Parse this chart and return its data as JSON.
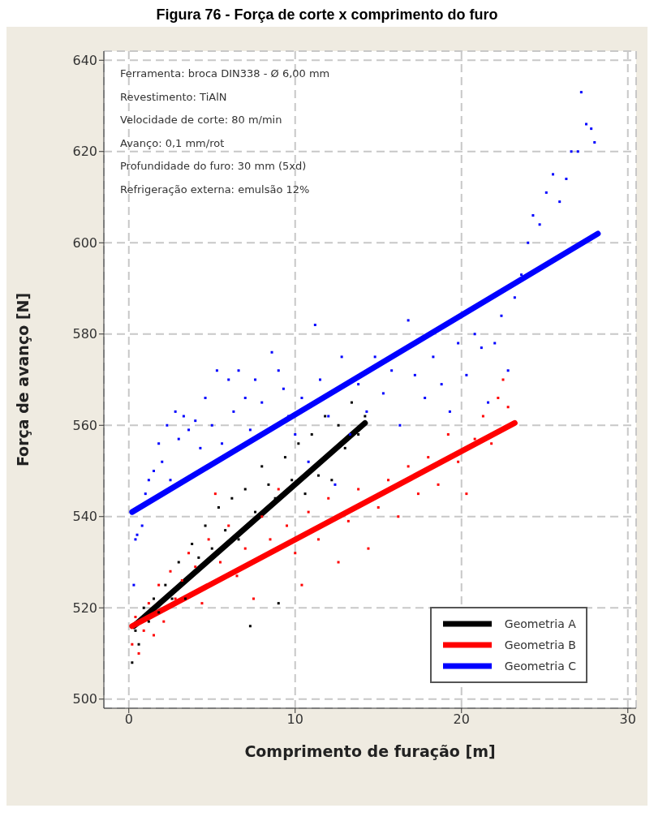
{
  "chart_data": {
    "type": "scatter",
    "title": "Figura 76 - Força de corte x comprimento do furo",
    "xlabel": "Comprimento de furação [m]",
    "ylabel": "Força de avanço [N]",
    "xlim": [
      -1.5,
      30.5
    ],
    "xticks": [
      0,
      10,
      20,
      30
    ],
    "ylim": [
      498,
      642
    ],
    "yticks": [
      500,
      520,
      540,
      560,
      580,
      600,
      620,
      640
    ],
    "grid": true,
    "legend": "bottom right",
    "marker": "square",
    "annotations": [
      "Ferramenta: broca DIN338 - Ø 6,00 mm",
      "Revestimento: TiAlN",
      "Velocidade de corte: 80 m/min",
      "Avanço: 0,1 mm/rot",
      "Profundidade do furo: 30 mm (5xd)",
      "Refrigeração externa: emulsão 12%"
    ],
    "series": [
      {
        "color": "#0000ff",
        "x": [
          0.3,
          0.4,
          0.5,
          0.8,
          1.0,
          1.2,
          1.5,
          1.8,
          2.0,
          2.3,
          2.5,
          2.8,
          3.0,
          3.3,
          3.6,
          4.0,
          4.3,
          4.6,
          5.0,
          5.3,
          5.6,
          6.0,
          6.3,
          6.6,
          7.0,
          7.3,
          7.6,
          8.0,
          8.6,
          9.0,
          9.3,
          9.6,
          10.0,
          10.4,
          10.8,
          11.2,
          11.5,
          12.0,
          12.4,
          12.8,
          13.3,
          13.8,
          14.3,
          14.8,
          15.3,
          15.8,
          16.3,
          16.8,
          17.2,
          17.8,
          18.3,
          18.8,
          19.3,
          19.8,
          20.3,
          20.8,
          21.2,
          21.6,
          22.0,
          22.4,
          22.8,
          23.2,
          23.6,
          24.0,
          24.3,
          24.7,
          25.1,
          25.5,
          25.9,
          26.3,
          26.6,
          27.0,
          27.2,
          27.5,
          27.8,
          28.0
        ],
        "values": [
          525,
          535,
          536,
          538,
          545,
          548,
          550,
          556,
          552,
          560,
          548,
          563,
          557,
          562,
          559,
          561,
          555,
          566,
          560,
          572,
          556,
          570,
          563,
          572,
          566,
          559,
          570,
          565,
          576,
          572,
          568,
          562,
          558,
          566,
          552,
          582,
          570,
          562,
          547,
          575,
          558,
          569,
          563,
          575,
          567,
          572,
          560,
          583,
          571,
          566,
          575,
          569,
          563,
          578,
          571,
          580,
          577,
          565,
          578,
          584,
          572,
          588,
          593,
          600,
          606,
          604,
          611,
          615,
          609,
          614,
          620,
          620,
          633,
          626,
          625,
          622
        ]
      },
      {
        "color": "#ff0000",
        "x": [
          0.2,
          0.4,
          0.6,
          0.9,
          1.2,
          1.5,
          1.8,
          2.1,
          2.5,
          2.8,
          3.2,
          3.6,
          4.0,
          4.4,
          4.8,
          5.2,
          5.5,
          6.0,
          6.5,
          7.0,
          7.5,
          8.0,
          8.5,
          9.0,
          9.5,
          10.0,
          10.4,
          10.8,
          11.4,
          12.0,
          12.6,
          13.2,
          13.8,
          14.4,
          15.0,
          15.6,
          16.2,
          16.8,
          17.4,
          18.0,
          18.6,
          19.2,
          19.8,
          20.3,
          20.8,
          21.3,
          21.8,
          22.2,
          22.5,
          22.8
        ],
        "values": [
          512,
          518,
          510,
          515,
          521,
          514,
          525,
          517,
          528,
          522,
          526,
          532,
          529,
          521,
          535,
          545,
          530,
          538,
          527,
          533,
          522,
          540,
          535,
          546,
          538,
          532,
          525,
          541,
          535,
          544,
          530,
          539,
          546,
          533,
          542,
          548,
          540,
          551,
          545,
          553,
          547,
          558,
          552,
          545,
          557,
          562,
          556,
          566,
          570,
          564
        ]
      },
      {
        "color": "#000000",
        "x": [
          0.2,
          0.4,
          0.6,
          0.9,
          1.2,
          1.5,
          1.8,
          2.2,
          2.6,
          3.0,
          3.4,
          3.8,
          4.2,
          4.6,
          5.0,
          5.4,
          5.8,
          6.2,
          6.6,
          7.0,
          7.3,
          7.6,
          8.0,
          8.4,
          8.8,
          9.0,
          9.4,
          9.8,
          10.2,
          10.6,
          11.0,
          11.4,
          11.8,
          12.2,
          12.6,
          13.0,
          13.4,
          13.8,
          14.2
        ],
        "values": [
          508,
          515,
          512,
          520,
          517,
          522,
          519,
          525,
          522,
          530,
          522,
          534,
          531,
          538,
          533,
          542,
          537,
          544,
          535,
          546,
          516,
          541,
          551,
          547,
          544,
          521,
          553,
          548,
          556,
          545,
          558,
          549,
          562,
          548,
          560,
          555,
          565,
          558,
          562
        ]
      },
      {
        "type": "line",
        "marker": "none",
        "name": "Geometria A",
        "color": "#000000",
        "x": [
          0.3,
          14.2
        ],
        "values": [
          516,
          560.5
        ]
      },
      {
        "type": "line",
        "marker": "none",
        "name": "Geometria B",
        "color": "#ff0000",
        "x": [
          0.2,
          23.2
        ],
        "values": [
          516,
          560.5
        ]
      },
      {
        "type": "line",
        "marker": "none",
        "name": "Geometria C",
        "color": "#0000ff",
        "x": [
          0.2,
          28.2
        ],
        "values": [
          541,
          602
        ]
      }
    ]
  }
}
